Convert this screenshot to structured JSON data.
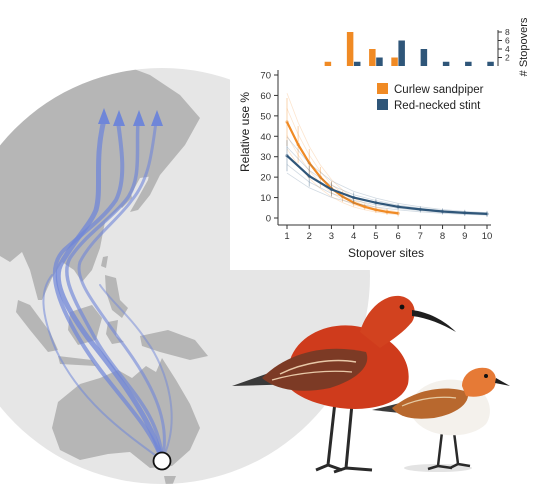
{
  "figure": {
    "legend": {
      "curlew_label": "Curlew sandpiper",
      "stint_label": "Red-necked stint"
    },
    "colors": {
      "curlew": "#f08a24",
      "stint": "#2f5679",
      "globe": "#e6e6e6",
      "land": "#b6b6b6",
      "flyway": "#6f86d8"
    },
    "illustration_labels": [
      "map-of-east-asian-australasian-flyway",
      "curlew-sandpiper-illustration",
      "red-necked-stint-illustration"
    ]
  },
  "chart_data": [
    {
      "type": "line",
      "xlabel": "Stopover sites",
      "ylabel": "Relative use %",
      "xlim": [
        1,
        10
      ],
      "ylim": [
        0,
        70
      ],
      "xticks": [
        1,
        2,
        3,
        4,
        5,
        6,
        7,
        8,
        9,
        10
      ],
      "yticks": [
        0,
        10,
        20,
        30,
        40,
        50,
        60,
        70
      ],
      "grid": false,
      "legend_position": "top-right",
      "series": [
        {
          "name": "Curlew sandpiper",
          "color": "#f08a24",
          "x": [
            1,
            1.5,
            2,
            2.5,
            3,
            3.5,
            4,
            4.5,
            5,
            5.5,
            6
          ],
          "y": [
            47,
            36,
            27,
            20,
            14.5,
            10.5,
            7.5,
            5.5,
            4,
            3,
            2.3
          ]
        },
        {
          "name": "Red-necked stint",
          "color": "#2f5679",
          "x": [
            1,
            2,
            3,
            4,
            5,
            6,
            7,
            8,
            9,
            10
          ],
          "y": [
            30.5,
            20.5,
            14,
            10,
            7.5,
            5.5,
            4.2,
            3.2,
            2.5,
            2
          ]
        }
      ]
    },
    {
      "type": "bar",
      "ylabel": "# Stopovers",
      "yticks": [
        2,
        4,
        6,
        8
      ],
      "ylim": [
        0,
        8
      ],
      "categories": [
        3,
        4,
        5,
        6,
        7,
        8,
        9,
        10
      ],
      "series": [
        {
          "name": "Curlew sandpiper",
          "color": "#f08a24",
          "values": [
            1,
            8,
            4,
            2,
            0,
            0,
            0,
            0
          ]
        },
        {
          "name": "Red-necked stint",
          "color": "#2f5679",
          "values": [
            0,
            1,
            2,
            6,
            4,
            1,
            1,
            1
          ]
        }
      ]
    }
  ]
}
